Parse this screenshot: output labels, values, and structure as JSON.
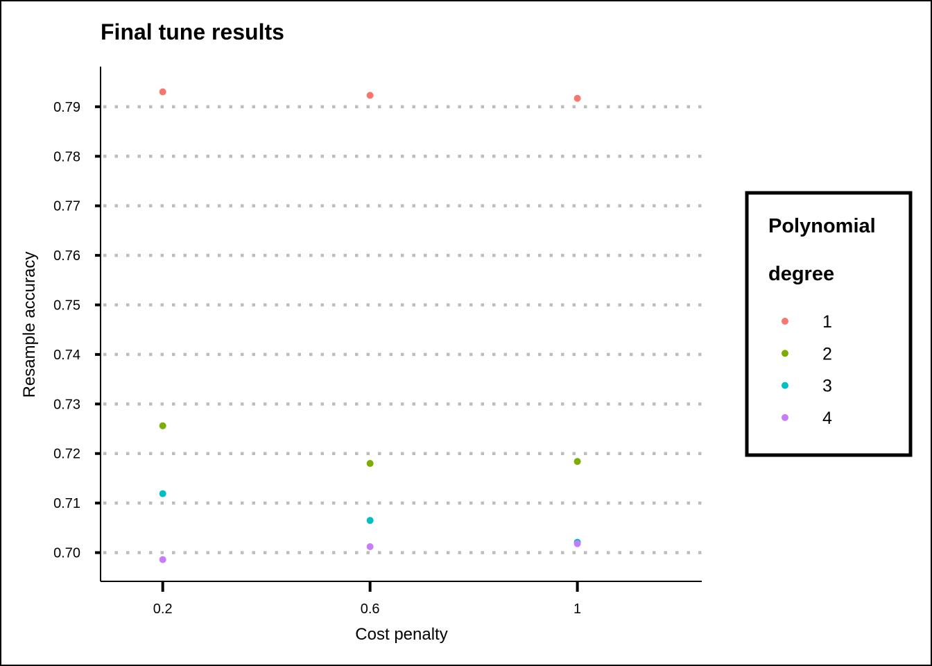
{
  "chart_data": {
    "type": "scatter",
    "title": "Final tune results",
    "xlabel": "Cost penalty",
    "ylabel": "Resample accuracy",
    "x_ticks": [
      "0.2",
      "0.6",
      "1"
    ],
    "y_ticks": [
      "0.70",
      "0.71",
      "0.72",
      "0.73",
      "0.74",
      "0.75",
      "0.76",
      "0.77",
      "0.78",
      "0.79"
    ],
    "xlim": [
      0.08,
      1.24
    ],
    "ylim": [
      0.6942,
      0.7981
    ],
    "grid": "horizontal dotted",
    "legend": {
      "title": "Polynomial degree",
      "title_lines": [
        "Polynomial",
        "degree"
      ],
      "placement": "right"
    },
    "series": [
      {
        "name": "1",
        "color": "#F8766D",
        "points": [
          [
            0.2,
            0.793
          ],
          [
            0.6,
            0.7923
          ],
          [
            1.0,
            0.7917
          ]
        ]
      },
      {
        "name": "2",
        "color": "#7CAE00",
        "points": [
          [
            0.2,
            0.7256
          ],
          [
            0.6,
            0.718
          ],
          [
            1.0,
            0.7184
          ]
        ]
      },
      {
        "name": "3",
        "color": "#00BFC4",
        "points": [
          [
            0.2,
            0.7119
          ],
          [
            0.6,
            0.7065
          ],
          [
            1.0,
            0.7021
          ]
        ]
      },
      {
        "name": "4",
        "color": "#C77CFF",
        "points": [
          [
            0.2,
            0.6986
          ],
          [
            0.6,
            0.7012
          ],
          [
            1.0,
            0.7018
          ]
        ]
      }
    ]
  }
}
